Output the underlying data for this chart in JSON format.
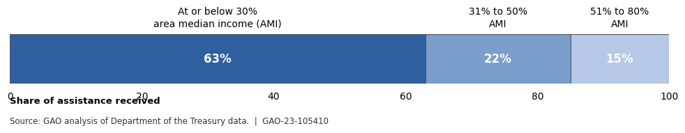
{
  "segments": [
    {
      "label": "63%",
      "value": 63,
      "color": "#2E5F9E",
      "header_line1": "At or below 30%",
      "header_line2": "area median income (AMI)"
    },
    {
      "label": "22%",
      "value": 22,
      "color": "#7B9FCC",
      "header_line1": "31% to 50%",
      "header_line2": "AMI"
    },
    {
      "label": "15%",
      "value": 15,
      "color": "#B8C8E8",
      "header_line1": "51% to 80%",
      "header_line2": "AMI"
    }
  ],
  "xlim": [
    0,
    100
  ],
  "xticks": [
    0,
    20,
    40,
    60,
    80,
    100
  ],
  "xlabel": "Share of assistance received",
  "source": "Source: GAO analysis of Department of the Treasury data.  |  GAO-23-105410",
  "label_fontsize": 12,
  "header_fontsize": 10,
  "xlabel_fontsize": 9.5,
  "source_fontsize": 8.5,
  "tick_fontsize": 10,
  "text_color": "#FFFFFF",
  "border_color": "#555555"
}
